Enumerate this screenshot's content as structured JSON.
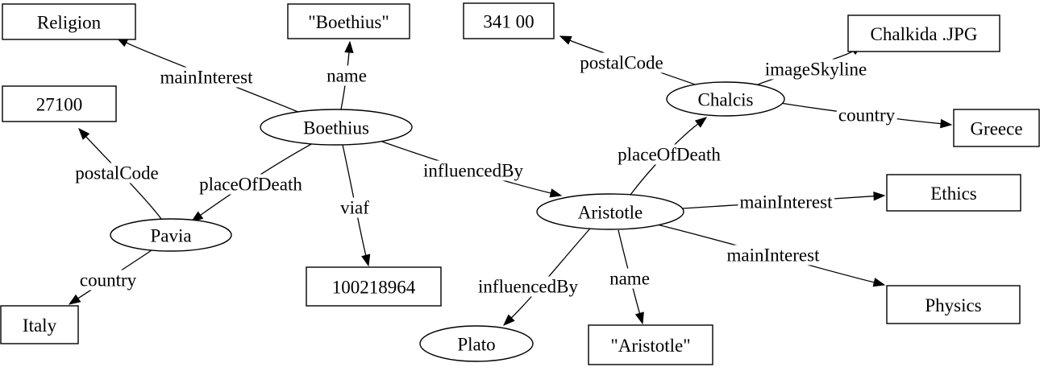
{
  "nodes": {
    "religion": {
      "label": "Religion",
      "kind": "literal"
    },
    "boethius_name": {
      "label": "\"Boethius\"",
      "kind": "literal"
    },
    "postal_chalcis": {
      "label": "341 00",
      "kind": "literal"
    },
    "chalkida_jpg": {
      "label": "Chalkida .JPG",
      "kind": "literal"
    },
    "postal_pavia": {
      "label": "27100",
      "kind": "literal"
    },
    "boethius": {
      "label": "Boethius",
      "kind": "resource"
    },
    "chalcis": {
      "label": "Chalcis",
      "kind": "resource"
    },
    "greece": {
      "label": "Greece",
      "kind": "literal"
    },
    "ethics": {
      "label": "Ethics",
      "kind": "literal"
    },
    "aristotle": {
      "label": "Aristotle",
      "kind": "resource"
    },
    "pavia": {
      "label": "Pavia",
      "kind": "resource"
    },
    "viaf_id": {
      "label": "100218964",
      "kind": "literal"
    },
    "physics": {
      "label": "Physics",
      "kind": "literal"
    },
    "italy": {
      "label": "Italy",
      "kind": "literal"
    },
    "plato": {
      "label": "Plato",
      "kind": "resource"
    },
    "aristotle_name": {
      "label": "\"Aristotle\"",
      "kind": "literal"
    }
  },
  "edges": [
    {
      "id": "e1",
      "from": "boethius",
      "to": "religion",
      "label": "mainInterest"
    },
    {
      "id": "e2",
      "from": "boethius",
      "to": "boethius_name",
      "label": "name"
    },
    {
      "id": "e3",
      "from": "boethius",
      "to": "pavia",
      "label": "placeOfDeath"
    },
    {
      "id": "e4",
      "from": "boethius",
      "to": "viaf_id",
      "label": "viaf"
    },
    {
      "id": "e5",
      "from": "boethius",
      "to": "aristotle",
      "label": "influencedBy"
    },
    {
      "id": "e6",
      "from": "pavia",
      "to": "postal_pavia",
      "label": "postalCode"
    },
    {
      "id": "e7",
      "from": "pavia",
      "to": "italy",
      "label": "country"
    },
    {
      "id": "e8",
      "from": "chalcis",
      "to": "postal_chalcis",
      "label": "postalCode"
    },
    {
      "id": "e9",
      "from": "chalcis",
      "to": "chalkida_jpg",
      "label": "imageSkyline"
    },
    {
      "id": "e10",
      "from": "chalcis",
      "to": "greece",
      "label": "country"
    },
    {
      "id": "e11",
      "from": "aristotle",
      "to": "chalcis",
      "label": "placeOfDeath"
    },
    {
      "id": "e12",
      "from": "aristotle",
      "to": "ethics",
      "label": "mainInterest"
    },
    {
      "id": "e13",
      "from": "aristotle",
      "to": "physics",
      "label": "mainInterest"
    },
    {
      "id": "e14",
      "from": "aristotle",
      "to": "plato",
      "label": "influencedBy"
    },
    {
      "id": "e15",
      "from": "aristotle",
      "to": "aristotle_name",
      "label": "name"
    }
  ]
}
